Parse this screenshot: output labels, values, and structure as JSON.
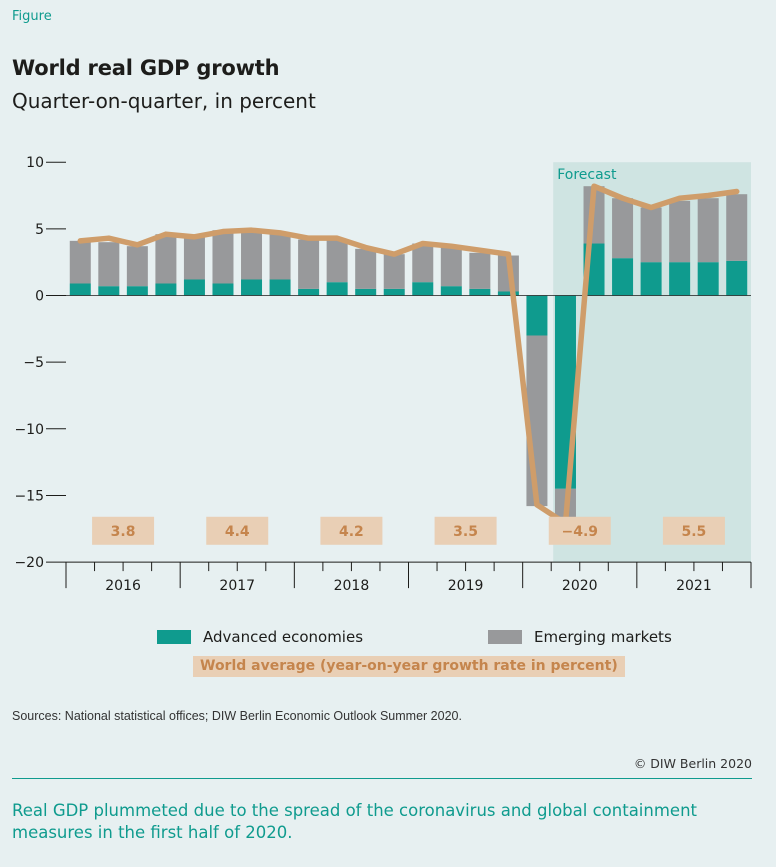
{
  "header": {
    "figure_label": "Figure",
    "title": "World real GDP growth",
    "subtitle": "Quarter-on-quarter, in percent"
  },
  "chart_data": {
    "type": "bar",
    "stacked": true,
    "x": [
      "2016 Q1",
      "2016 Q2",
      "2016 Q3",
      "2016 Q4",
      "2017 Q1",
      "2017 Q2",
      "2017 Q3",
      "2017 Q4",
      "2018 Q1",
      "2018 Q2",
      "2018 Q3",
      "2018 Q4",
      "2019 Q1",
      "2019 Q2",
      "2019 Q3",
      "2019 Q4",
      "2020 Q1",
      "2020 Q2",
      "2020 Q3",
      "2020 Q4",
      "2021 Q1",
      "2021 Q2",
      "2021 Q3",
      "2021 Q4"
    ],
    "year_labels": [
      "2016",
      "2017",
      "2018",
      "2019",
      "2020",
      "2021"
    ],
    "series": [
      {
        "name": "Advanced economies",
        "color": "#0f9b8e",
        "values": [
          0.9,
          0.7,
          0.7,
          0.9,
          1.2,
          0.9,
          1.2,
          1.2,
          0.5,
          1.0,
          0.5,
          0.5,
          1.0,
          0.7,
          0.5,
          0.3,
          -3.0,
          -14.5,
          3.9,
          2.8,
          2.5,
          2.5,
          2.5,
          2.6
        ]
      },
      {
        "name": "Emerging markets",
        "color": "#98999b",
        "values": [
          3.2,
          3.3,
          3.0,
          3.7,
          3.2,
          4.0,
          3.6,
          3.5,
          3.7,
          3.2,
          3.0,
          2.6,
          2.9,
          2.9,
          2.7,
          2.7,
          -12.8,
          -2.7,
          4.3,
          4.5,
          4.1,
          4.6,
          4.8,
          5.0
        ]
      }
    ],
    "world_average_line": {
      "color": "#cf9d6a",
      "values": [
        4.1,
        4.3,
        3.8,
        4.6,
        4.4,
        4.8,
        4.9,
        4.7,
        4.3,
        4.3,
        3.6,
        3.1,
        3.9,
        3.7,
        3.4,
        3.1,
        -15.7,
        -17.1,
        8.2,
        7.3,
        6.6,
        7.3,
        7.5,
        7.8
      ]
    },
    "world_average_yearly": {
      "label": "World average (year-on-year growth rate in percent)",
      "values": [
        "3.8",
        "4.4",
        "4.2",
        "3.5",
        "−4.9",
        "5.5"
      ]
    },
    "forecast_label": "Forecast",
    "forecast_from": "2020 Q2",
    "y_ticks": [
      "10",
      "5",
      "0",
      "−5",
      "−10",
      "−15",
      "−20"
    ],
    "ylim": [
      -20,
      10
    ],
    "grid": false,
    "legend_placement": "bottom"
  },
  "footer": {
    "sources": "Sources: National statistical offices; DIW Berlin Economic Outlook Summer 2020.",
    "copyright": "© DIW Berlin 2020",
    "caption": "Real GDP plummeted due to the spread of the coronavirus and global containment measures in the first half of 2020."
  }
}
